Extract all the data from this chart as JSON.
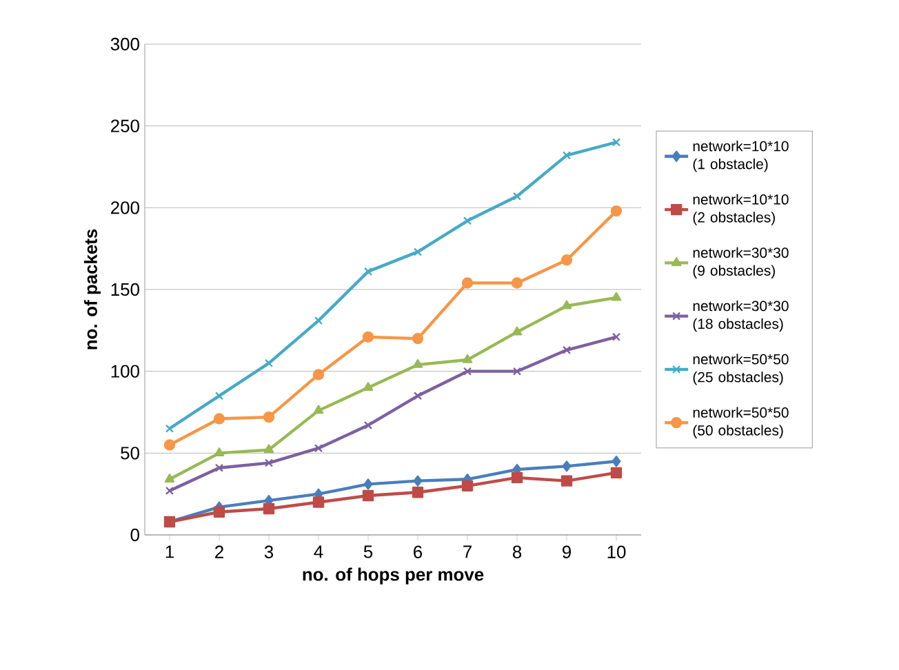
{
  "chart_data": {
    "type": "line",
    "xlabel": "no. of hops per move",
    "ylabel": "no. of packets",
    "categories": [
      "1",
      "2",
      "3",
      "4",
      "5",
      "6",
      "7",
      "8",
      "9",
      "10"
    ],
    "ylim": [
      0,
      300
    ],
    "yticks": [
      0,
      50,
      100,
      150,
      200,
      250,
      300
    ],
    "grid": "y",
    "legend": "right",
    "series": [
      {
        "name": "network=10*10 (1 obstacle)",
        "color": "#4a7ebb",
        "marker": "diamond",
        "values": [
          8,
          17,
          21,
          25,
          31,
          33,
          34,
          40,
          42,
          45
        ]
      },
      {
        "name": "network=10*10 (2 obstacles)",
        "color": "#be4b48",
        "marker": "square",
        "values": [
          8,
          14,
          16,
          20,
          24,
          26,
          30,
          35,
          33,
          38
        ]
      },
      {
        "name": "network=30*30 (9 obstacles)",
        "color": "#98b954",
        "marker": "triangle",
        "values": [
          34,
          50,
          52,
          76,
          90,
          104,
          107,
          124,
          140,
          145
        ]
      },
      {
        "name": "network=30*30 (18 obstacles)",
        "color": "#7d60a0",
        "marker": "cross",
        "values": [
          27,
          41,
          44,
          53,
          67,
          85,
          100,
          100,
          113,
          121
        ]
      },
      {
        "name": "network=50*50 (25 obstacles)",
        "color": "#46aac5",
        "marker": "cross",
        "values": [
          65,
          85,
          105,
          131,
          161,
          173,
          192,
          207,
          232,
          240
        ]
      },
      {
        "name": "network=50*50 (50 obstacles)",
        "color": "#f79646",
        "marker": "circle",
        "values": [
          55,
          71,
          72,
          98,
          121,
          120,
          154,
          154,
          168,
          198
        ]
      }
    ]
  }
}
